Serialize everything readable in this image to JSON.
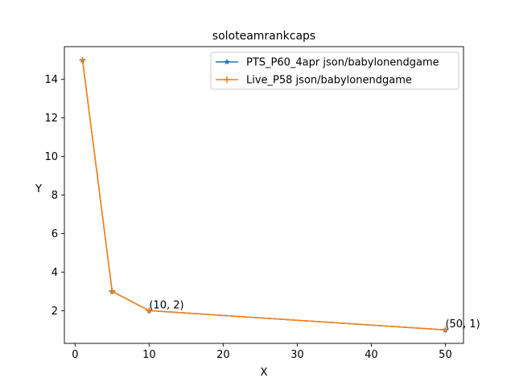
{
  "chart_data": {
    "type": "line",
    "title": "soloteamrankcaps",
    "xlabel": "X",
    "ylabel": "Y",
    "xlim": [
      -1.45,
      52.45
    ],
    "ylim": [
      0.3,
      15.7
    ],
    "xticks": [
      0,
      10,
      20,
      30,
      40,
      50
    ],
    "yticks": [
      2,
      4,
      6,
      8,
      10,
      12,
      14
    ],
    "legend_position": "top-right",
    "series": [
      {
        "name": "PTS_P60_4apr json/babylonendgame",
        "color": "#1f77b4",
        "marker": "star",
        "x": [
          1,
          5,
          10,
          50
        ],
        "y": [
          15,
          3,
          2,
          1
        ]
      },
      {
        "name": "Live_P58 json/babylonendgame",
        "color": "#ff7f0e",
        "marker": "plus",
        "x": [
          1,
          5,
          10,
          50
        ],
        "y": [
          15,
          3,
          2,
          1
        ]
      }
    ],
    "annotations": [
      {
        "text": "(10, 2)",
        "x": 10,
        "y": 2
      },
      {
        "text": "(50, 1)",
        "x": 50,
        "y": 1
      }
    ]
  }
}
